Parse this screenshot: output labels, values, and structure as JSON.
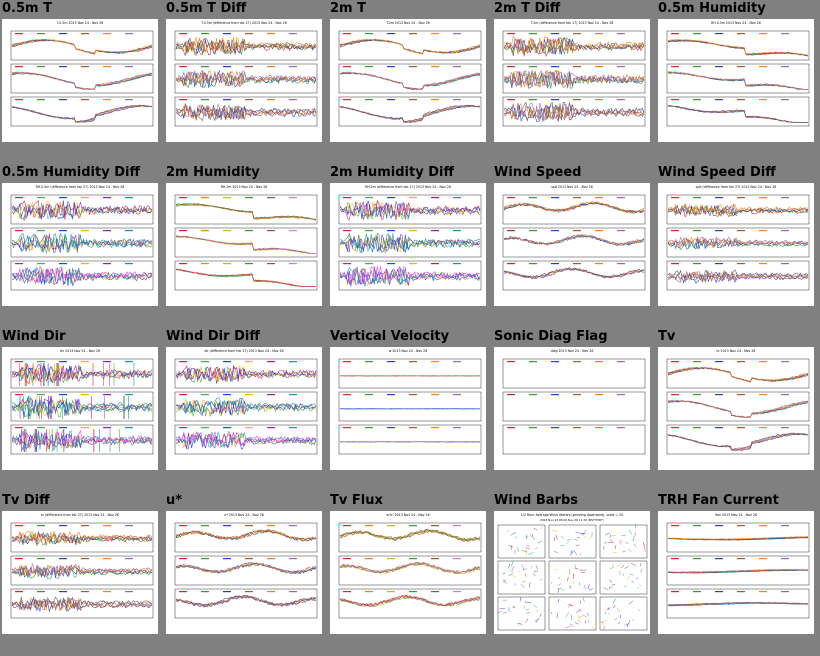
{
  "page": {
    "background": "#808080",
    "tiles": [
      {
        "title": "0.5m T",
        "thumb_title": "T.0.5m 2013 Nov 24 - Nov 26",
        "kind": "trace3",
        "palette": "mixed",
        "noise": 0.25
      },
      {
        "title": "0.5m T Diff",
        "thumb_title": "T.0.5m (difference from tdc 27) 2013 Nov 24 - Nov 26",
        "kind": "diff3",
        "palette": "mixed",
        "noise": 0.9
      },
      {
        "title": "2m T",
        "thumb_title": "T.2m 2013 Nov 24 - Nov 26",
        "kind": "trace3",
        "palette": "mixed",
        "noise": 0.25
      },
      {
        "title": "2m T Diff",
        "thumb_title": "T.2m (difference from tdc 17) 2013 Nov 24 - Nov 26",
        "kind": "diff3",
        "palette": "mixed",
        "noise": 1.0
      },
      {
        "title": "0.5m Humidity",
        "thumb_title": "RH.0.5m 2013 Nov 24 - Nov 26",
        "kind": "hum3",
        "palette": "mixed",
        "noise": 0.2
      },
      {
        "title": "0.5m Humidity Diff",
        "thumb_title": "RH.0.5m (difference from tdc 27) 2013 Nov 24 - Nov 26",
        "kind": "diff3",
        "palette": "vivid",
        "noise": 1.0
      },
      {
        "title": "2m Humidity",
        "thumb_title": "RH.2m 2013 Nov 24 - Nov 26",
        "kind": "hum3",
        "palette": "warm",
        "noise": 0.2
      },
      {
        "title": "2m Humidity Diff",
        "thumb_title": "RH.2m (difference from tdc 17) 2013 Nov 24 - Nov 26",
        "kind": "diff3",
        "palette": "vivid",
        "noise": 1.0
      },
      {
        "title": "Wind Speed",
        "thumb_title": "spd 2013 Nov 24 - Nov 26",
        "kind": "wind3",
        "palette": "mixed",
        "noise": 0.5
      },
      {
        "title": "Wind Speed Diff",
        "thumb_title": "spd (difference from tdc 27) 2013 Nov 24 - Nov 26",
        "kind": "diff3",
        "palette": "mixed",
        "noise": 0.6
      },
      {
        "title": "Wind Dir",
        "thumb_title": "dir 2013 Nov 24 - Nov 26",
        "kind": "dir3",
        "palette": "vivid",
        "noise": 1.0
      },
      {
        "title": "Wind Dir Diff",
        "thumb_title": "dir (difference from tdc 27) 2013 Nov 24 - Nov 26",
        "kind": "diff3",
        "palette": "vivid",
        "noise": 0.9
      },
      {
        "title": "Vertical Velocity",
        "thumb_title": "w 2013 Nov 24 - Nov 26",
        "kind": "flat3",
        "palette": "mixed",
        "noise": 0.05
      },
      {
        "title": "Sonic Diag Flag",
        "thumb_title": "diag 2013 Nov 24 - Nov 26",
        "kind": "empty3",
        "palette": "mixed",
        "noise": 0.0
      },
      {
        "title": "Tv",
        "thumb_title": "tc 2013 Nov 24 - Nov 26",
        "kind": "trace3",
        "palette": "mixed",
        "noise": 0.25
      },
      {
        "title": "Tv Diff",
        "thumb_title": "tc (difference from tdc 27) 2013 Nov 24 - Nov 26",
        "kind": "diff3",
        "palette": "mixed",
        "noise": 0.7
      },
      {
        "title": "u*",
        "thumb_title": "u* 2013 Nov 24 - Nov 26",
        "kind": "wind3",
        "palette": "mixed",
        "noise": 0.6
      },
      {
        "title": "Tv Flux",
        "thumb_title": "w'tc' 2013 Nov 24 - Nov 26",
        "kind": "wind3",
        "palette": "warm",
        "noise": 0.6
      },
      {
        "title": "Wind Barbs",
        "thumb_title": "1/2 Hour Average Wind Vectors (pointing downwind), scale = 20",
        "thumb_subtitle": "2013 Nov 24 00:00 Nov 26 11:30 (MST7MDT)",
        "kind": "barbs",
        "palette": "vivid",
        "noise": 0.0
      },
      {
        "title": "TRH Fan Current",
        "thumb_title": "Ifan 2013 Nov 24 - Nov 26",
        "kind": "fan3",
        "palette": "mixed",
        "noise": 0.1
      }
    ]
  },
  "colors": {
    "mixed": [
      "#d62728",
      "#2ca02c",
      "#1f3fd6",
      "#a05a2c",
      "#ff7f0e",
      "#9467bd",
      "#555555"
    ],
    "vivid": [
      "#e6194b",
      "#3cb44b",
      "#0050ff",
      "#ffb000",
      "#911eb4",
      "#00a0a0",
      "#f032e6",
      "#777777"
    ],
    "warm": [
      "#d62728",
      "#ff7f0e",
      "#bcbd22",
      "#2ca02c",
      "#8c564b",
      "#e377c2"
    ]
  }
}
